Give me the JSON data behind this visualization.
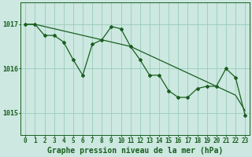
{
  "title": "Graphe pression niveau de la mer (hPa)",
  "background_color": "#cce8e0",
  "grid_color": "#99ccbb",
  "line_color": "#1a5e20",
  "ylim": [
    1014.5,
    1017.5
  ],
  "yticks": [
    1015,
    1016,
    1017
  ],
  "xlim": [
    -0.5,
    23.5
  ],
  "xticks": [
    0,
    1,
    2,
    3,
    4,
    5,
    6,
    7,
    8,
    9,
    10,
    11,
    12,
    13,
    14,
    15,
    16,
    17,
    18,
    19,
    20,
    21,
    22,
    23
  ],
  "series1": [
    1017.0,
    1017.0,
    1016.75,
    1016.75,
    1016.6,
    1016.2,
    1015.85,
    1016.55,
    1016.65,
    1016.95,
    1016.9,
    1016.5,
    1016.2,
    1015.85,
    1015.85,
    1015.5,
    1015.35,
    1015.35,
    1015.55,
    1015.6,
    1015.6,
    1016.0,
    1015.8,
    1014.95
  ],
  "series2": [
    1017.0,
    1017.0,
    1016.95,
    1016.9,
    1016.85,
    1016.8,
    1016.75,
    1016.7,
    1016.65,
    1016.6,
    1016.55,
    1016.5,
    1016.4,
    1016.3,
    1016.2,
    1016.1,
    1016.0,
    1015.9,
    1015.8,
    1015.7,
    1015.6,
    1015.5,
    1015.4,
    1015.05
  ],
  "title_fontsize": 7,
  "tick_fontsize": 5.5
}
